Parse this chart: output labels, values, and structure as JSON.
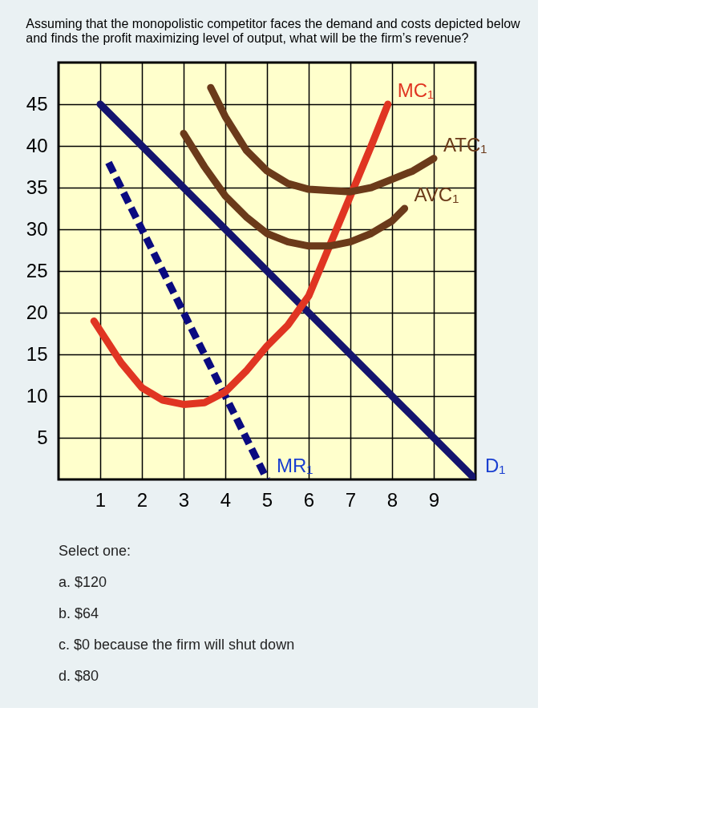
{
  "chart_data": {
    "type": "line",
    "title": [
      "Assuming that the monopolistic competitor faces the demand and costs depicted below",
      "and finds the profit maximizing level of output, what will be the firm’s revenue?"
    ],
    "xlim": [
      0,
      10
    ],
    "ylim": [
      0,
      50
    ],
    "xticks": [
      1,
      2,
      3,
      4,
      5,
      6,
      7,
      8,
      9
    ],
    "yticks": [
      5,
      10,
      15,
      20,
      25,
      30,
      35,
      40,
      45
    ],
    "grid": true,
    "series": [
      {
        "name": "D₁",
        "color": "#14146e",
        "x": [
          1,
          10
        ],
        "values": [
          45,
          0
        ]
      },
      {
        "name": "MR₁",
        "color": "#0a0a80",
        "line_style": "dashed",
        "x": [
          1.2,
          5
        ],
        "values": [
          38,
          0
        ]
      },
      {
        "name": "MC₁",
        "color": "#e03522",
        "x": [
          0.85,
          1.5,
          2,
          2.5,
          3,
          3.5,
          4,
          4.5,
          5,
          5.5,
          6,
          6.5,
          7,
          7.5,
          7.9
        ],
        "values": [
          19,
          14,
          11,
          9.5,
          9,
          9.2,
          10.5,
          13,
          16,
          18.5,
          22,
          28,
          34,
          40,
          45
        ]
      },
      {
        "name": "ATC₁",
        "color": "#6b3a1a",
        "x": [
          3.65,
          4,
          4.5,
          5,
          5.5,
          6,
          7,
          7.5,
          8,
          8.5,
          9
        ],
        "values": [
          47,
          43.5,
          39.5,
          37,
          35.5,
          34.8,
          34.5,
          35,
          36,
          37,
          38.5
        ]
      },
      {
        "name": "AVC₁",
        "color": "#6b3a1a",
        "x": [
          3,
          3.5,
          4,
          4.5,
          5,
          5.5,
          6,
          6.5,
          7,
          7.5,
          8,
          8.3
        ],
        "values": [
          41.5,
          37.5,
          34,
          31.5,
          29.5,
          28.5,
          28,
          28,
          28.5,
          29.5,
          31,
          32.5
        ]
      }
    ],
    "annotations": [
      "Select one:",
      "a.  $120",
      "b.  $64",
      "c.  $0 because the firm will shut down",
      "d.  $80"
    ]
  }
}
